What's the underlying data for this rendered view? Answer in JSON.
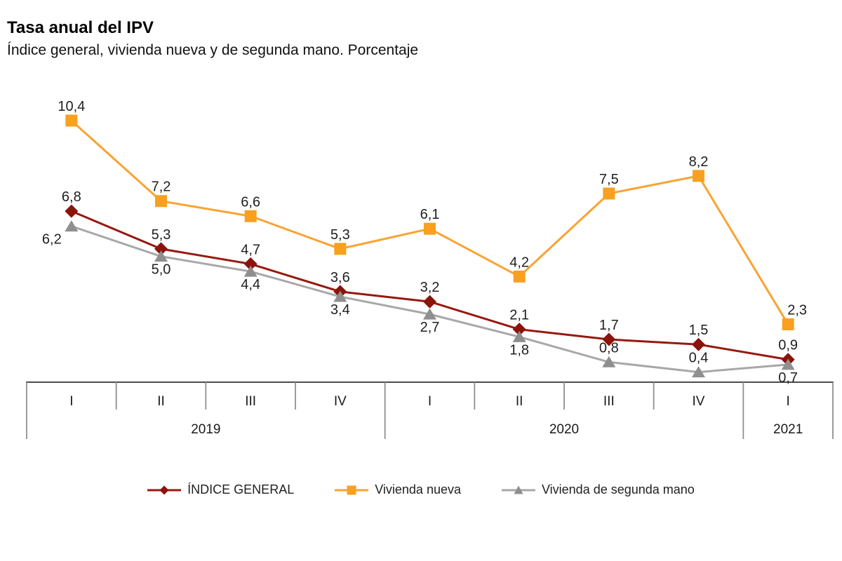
{
  "page": {
    "title": "Tasa anual del IPV",
    "subtitle": "Índice general, vivienda nueva y de segunda mano. Porcentaje"
  },
  "chart_data": {
    "type": "line",
    "title": "Tasa anual del IPV",
    "subtitle": "Índice general, vivienda nueva y de segunda mano. Porcentaje",
    "unit": "percent",
    "decimal_separator": ",",
    "grid": false,
    "legend_position": "bottom",
    "ylim": [
      0,
      11
    ],
    "categories": [
      "I",
      "II",
      "III",
      "IV",
      "I",
      "II",
      "III",
      "IV",
      "I"
    ],
    "year_groups": [
      {
        "label": "2019",
        "span": 4
      },
      {
        "label": "2020",
        "span": 4
      },
      {
        "label": "2021",
        "span": 1
      }
    ],
    "axis_colors": {
      "baseline": "#4d4d4d",
      "ticks": "#8f8f8f",
      "text": "#1a1a1a"
    },
    "label_color": "#1f1f1f",
    "series": [
      {
        "name": "ÍNDICE GENERAL",
        "marker": "diamond",
        "color": "#96190f",
        "marker_color": "#8c130b",
        "values": [
          6.8,
          5.3,
          4.7,
          3.6,
          3.2,
          2.1,
          1.7,
          1.5,
          0.9
        ],
        "labels": [
          "6,8",
          "5,3",
          "4,7",
          "3,6",
          "3,2",
          "2,1",
          "1,7",
          "1,5",
          "0,9"
        ],
        "label_pos": [
          "above",
          "above",
          "above",
          "above",
          "above",
          "above",
          "above",
          "above",
          "above"
        ],
        "label_dx": [
          0,
          0,
          0,
          0,
          0,
          0,
          0,
          0,
          0
        ]
      },
      {
        "name": "Vivienda nueva",
        "marker": "square",
        "color": "#faa332",
        "marker_color": "#f9a01f",
        "values": [
          10.4,
          7.2,
          6.6,
          5.3,
          6.1,
          4.2,
          7.5,
          8.2,
          2.3
        ],
        "labels": [
          "10,4",
          "7,2",
          "6,6",
          "5,3",
          "6,1",
          "4,2",
          "7,5",
          "8,2",
          "2,3"
        ],
        "label_pos": [
          "above",
          "above",
          "above",
          "above",
          "above",
          "above",
          "above",
          "above",
          "above"
        ],
        "label_dx": [
          0,
          0,
          0,
          0,
          0,
          0,
          0,
          0,
          13
        ]
      },
      {
        "name": "Vivienda de segunda mano",
        "marker": "triangle",
        "color": "#a8a8a8",
        "marker_color": "#8f8f8f",
        "values": [
          6.2,
          5.0,
          4.4,
          3.4,
          2.7,
          1.8,
          0.8,
          0.4,
          0.7
        ],
        "labels": [
          "6,2",
          "5,0",
          "4,4",
          "3,4",
          "2,7",
          "1,8",
          "0,8",
          "0,4",
          "0,7"
        ],
        "label_pos": [
          "below",
          "below",
          "below",
          "below",
          "below",
          "below",
          "above",
          "above",
          "below"
        ],
        "label_dx": [
          -28,
          0,
          0,
          0,
          0,
          0,
          0,
          0,
          0
        ]
      }
    ]
  }
}
